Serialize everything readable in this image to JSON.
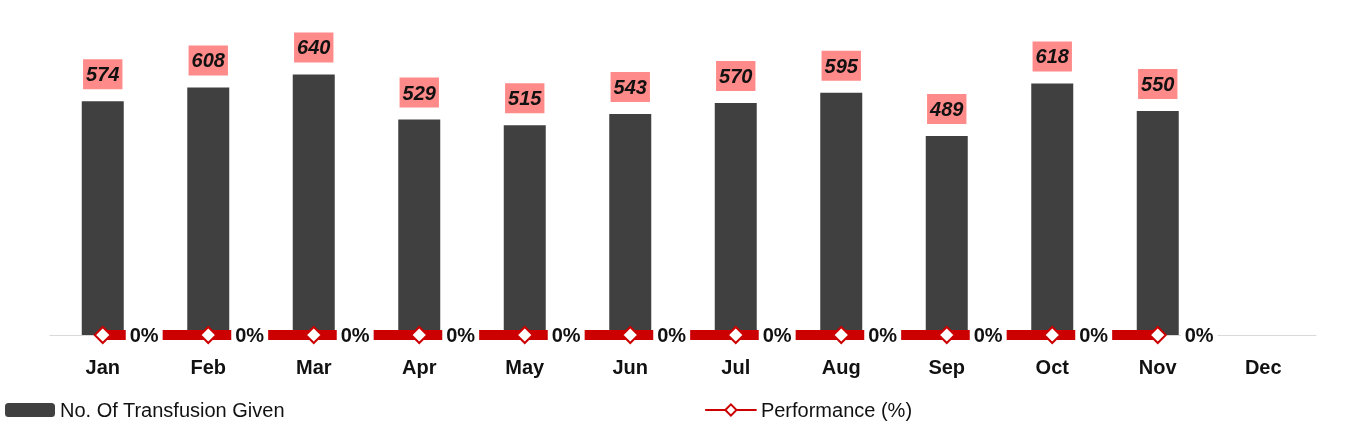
{
  "chart_data": {
    "type": "bar",
    "categories": [
      "Jan",
      "Feb",
      "Mar",
      "Apr",
      "May",
      "Jun",
      "Jul",
      "Aug",
      "Sep",
      "Oct",
      "Nov",
      "Dec"
    ],
    "series": [
      {
        "name": "No. Of Transfusion Given",
        "color": "#404040",
        "values": [
          574,
          608,
          640,
          529,
          515,
          543,
          570,
          595,
          489,
          618,
          550,
          null
        ],
        "data_labels": true
      },
      {
        "name": "Performance (%)",
        "type": "line",
        "color": "#cc0000",
        "values": [
          0,
          0,
          0,
          0,
          0,
          0,
          0,
          0,
          0,
          0,
          0,
          null
        ],
        "value_labels": [
          "0%",
          "0%",
          "0%",
          "0%",
          "0%",
          "0%",
          "0%",
          "0%",
          "0%",
          "0%",
          "0%",
          null
        ],
        "marker": "diamond",
        "line_style": "solid"
      }
    ],
    "legend": "bottom"
  }
}
